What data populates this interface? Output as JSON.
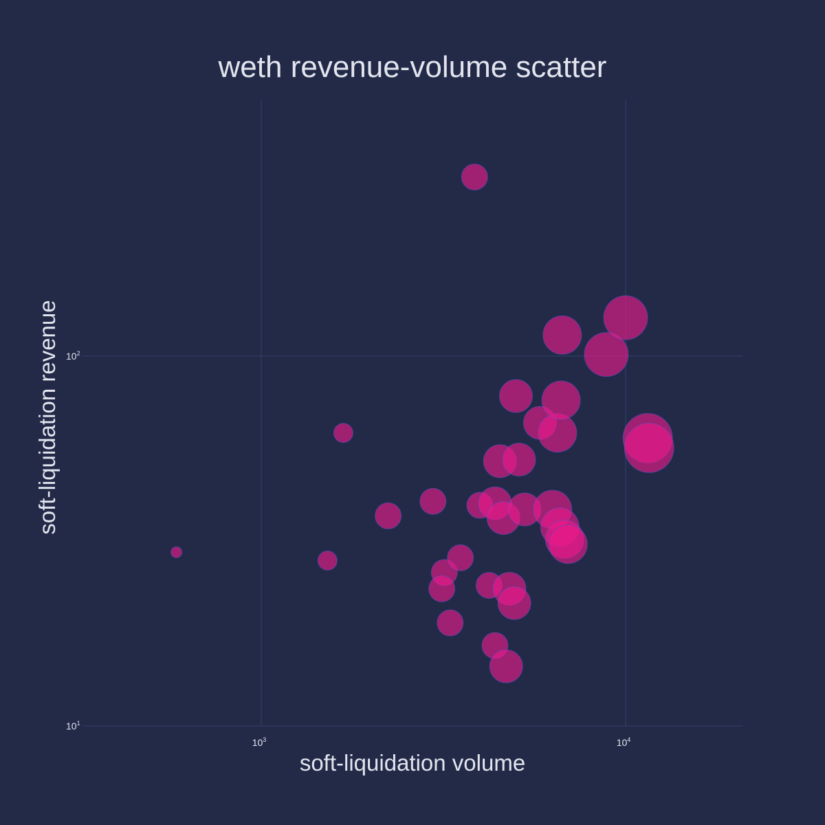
{
  "chart_data": {
    "type": "scatter",
    "title": "weth revenue-volume scatter",
    "xlabel": "soft-liquidation volume",
    "ylabel": "soft-liquidation revenue",
    "x_scale": "log",
    "y_scale": "log",
    "xlim": [
      450,
      21000
    ],
    "ylim": [
      10,
      600
    ],
    "x_ticks": [
      {
        "base": "10",
        "exp": "3",
        "value": 1000
      },
      {
        "base": "10",
        "exp": "4",
        "value": 10000
      }
    ],
    "y_ticks": [
      {
        "base": "10",
        "exp": "1",
        "value": 10
      },
      {
        "base": "10",
        "exp": "2",
        "value": 100
      }
    ],
    "grid": true,
    "legend": "none",
    "colors": {
      "background": "#222a48",
      "grid": "#34406a",
      "marker": "#ee1a8c",
      "marker_edge": "#4a57c0",
      "text": "#e3e5ee"
    },
    "points": [
      {
        "x": 585,
        "y": 29.5,
        "size": 1
      },
      {
        "x": 1520,
        "y": 28,
        "size": 2
      },
      {
        "x": 1680,
        "y": 62,
        "size": 2
      },
      {
        "x": 2230,
        "y": 37,
        "size": 3
      },
      {
        "x": 2960,
        "y": 40.5,
        "size": 3
      },
      {
        "x": 3180,
        "y": 26,
        "size": 3
      },
      {
        "x": 3130,
        "y": 23.5,
        "size": 3
      },
      {
        "x": 3300,
        "y": 19,
        "size": 3
      },
      {
        "x": 3520,
        "y": 28.5,
        "size": 3
      },
      {
        "x": 3850,
        "y": 305,
        "size": 3
      },
      {
        "x": 3980,
        "y": 39.5,
        "size": 3
      },
      {
        "x": 4220,
        "y": 24,
        "size": 3
      },
      {
        "x": 4380,
        "y": 16.5,
        "size": 3
      },
      {
        "x": 4380,
        "y": 40,
        "size": 4
      },
      {
        "x": 4520,
        "y": 52,
        "size": 4
      },
      {
        "x": 4620,
        "y": 36.5,
        "size": 4
      },
      {
        "x": 4700,
        "y": 14.5,
        "size": 4
      },
      {
        "x": 4800,
        "y": 23.5,
        "size": 4
      },
      {
        "x": 4950,
        "y": 21.5,
        "size": 4
      },
      {
        "x": 5100,
        "y": 52.5,
        "size": 4
      },
      {
        "x": 5000,
        "y": 78,
        "size": 4
      },
      {
        "x": 5280,
        "y": 38.5,
        "size": 4
      },
      {
        "x": 5820,
        "y": 66,
        "size": 4
      },
      {
        "x": 6300,
        "y": 38.5,
        "size": 5
      },
      {
        "x": 6500,
        "y": 62,
        "size": 5
      },
      {
        "x": 6600,
        "y": 34.5,
        "size": 5
      },
      {
        "x": 6650,
        "y": 76,
        "size": 5
      },
      {
        "x": 6700,
        "y": 114,
        "size": 5
      },
      {
        "x": 6800,
        "y": 32,
        "size": 5
      },
      {
        "x": 6950,
        "y": 31,
        "size": 5
      },
      {
        "x": 8850,
        "y": 101,
        "size": 6
      },
      {
        "x": 10000,
        "y": 127,
        "size": 6
      },
      {
        "x": 11500,
        "y": 60,
        "size": 7
      },
      {
        "x": 11600,
        "y": 56.5,
        "size": 7
      }
    ]
  }
}
